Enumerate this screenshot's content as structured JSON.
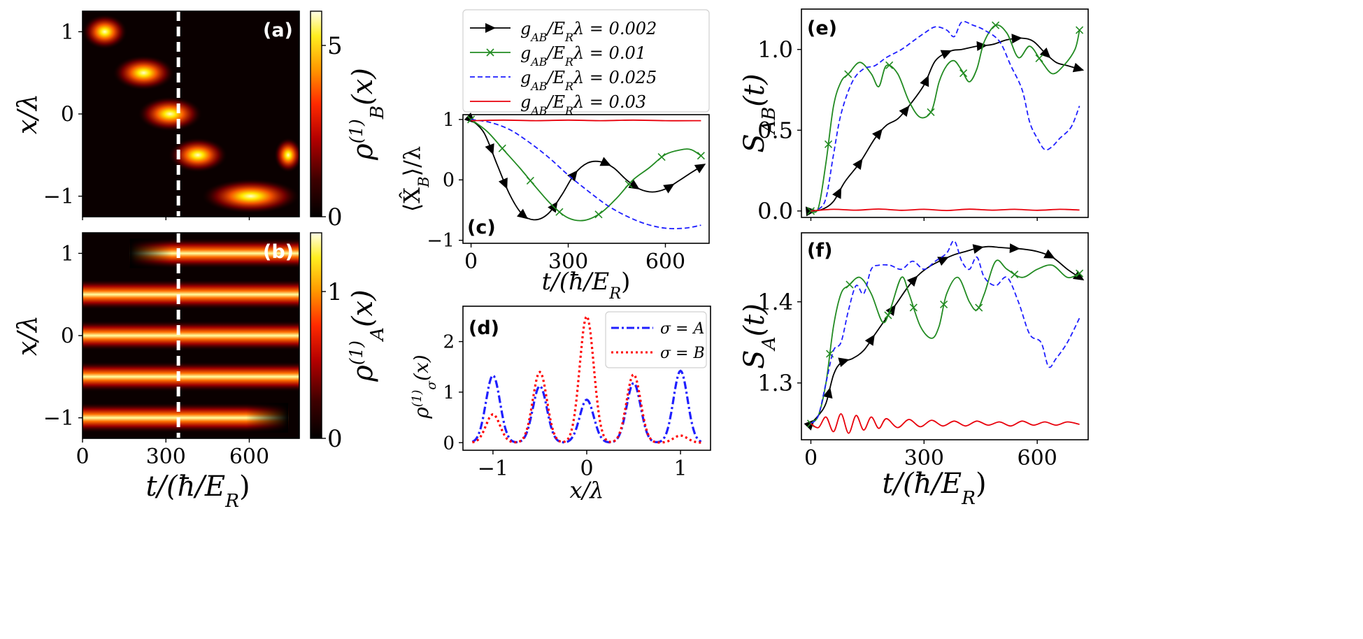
{
  "figure": {
    "panel_labels": [
      "(a)",
      "(b)",
      "(c)",
      "(d)",
      "(e)",
      "(f)"
    ]
  },
  "chart_data": [
    {
      "id": "a",
      "type": "heatmap",
      "panel_label": "(a)",
      "xlabel": "t/(ħ/E_R)",
      "ylabel": "x/λ",
      "colorbar_label": "ρ_B^(1)(x)",
      "colorbar_ticks": [
        0,
        5
      ],
      "colorbar_range": [
        0,
        6
      ],
      "xlim": [
        0,
        780
      ],
      "ylim": [
        -1.25,
        1.25
      ],
      "yticks": [
        -1,
        0,
        1
      ],
      "ytick_labels": [
        "−1",
        "0",
        "1"
      ],
      "dashed_line_t": 345,
      "blobs": [
        {
          "t_start": 0,
          "t_end": 160,
          "x": 1.0
        },
        {
          "t_start": 110,
          "t_end": 330,
          "x": 0.5
        },
        {
          "t_start": 200,
          "t_end": 430,
          "x": 0.0
        },
        {
          "t_start": 310,
          "t_end": 520,
          "x": -0.5
        },
        {
          "t_start": 690,
          "t_end": 790,
          "x": -0.5
        },
        {
          "t_start": 430,
          "t_end": 780,
          "x": -1.0
        }
      ]
    },
    {
      "id": "b",
      "type": "heatmap",
      "panel_label": "(b)",
      "xlabel": "t/(ħ/E_R)",
      "ylabel": "x/λ",
      "colorbar_label": "ρ_A^(1)(x)",
      "colorbar_ticks": [
        0,
        1
      ],
      "colorbar_range": [
        0,
        1.4
      ],
      "xlim": [
        0,
        780
      ],
      "xticks": [
        0,
        300,
        600
      ],
      "ylim": [
        -1.25,
        1.25
      ],
      "yticks": [
        -1,
        0,
        1
      ],
      "ytick_labels": [
        "−1",
        "0",
        "1"
      ],
      "dashed_line_t": 345,
      "bands": [
        {
          "x": 1.0,
          "t_start": 170,
          "t_end": 780
        },
        {
          "x": 0.5,
          "t_start": 0,
          "t_end": 780
        },
        {
          "x": 0.0,
          "t_start": 0,
          "t_end": 780
        },
        {
          "x": -0.5,
          "t_start": 0,
          "t_end": 780
        },
        {
          "x": -1.0,
          "t_start": 0,
          "t_end": 740
        }
      ]
    },
    {
      "id": "c",
      "type": "line",
      "panel_label": "(c)",
      "xlabel": "t/(ħ/E_R)",
      "ylabel": "⟨X̂_B⟩/λ",
      "xlim": [
        -25,
        735
      ],
      "ylim": [
        -1.05,
        1.08
      ],
      "xticks": [
        0,
        300,
        600
      ],
      "yticks": [
        -1,
        0,
        1
      ],
      "ytick_labels": [
        "−1",
        "0",
        "1"
      ],
      "legend": [
        {
          "label": "g_AB/E_Rλ = 0.002",
          "color": "#000000",
          "style": "solid",
          "marker": "triangle"
        },
        {
          "label": "g_AB/E_Rλ = 0.01",
          "color": "#228b22",
          "style": "solid",
          "marker": "x"
        },
        {
          "label": "g_AB/E_Rλ = 0.025",
          "color": "#1f1fff",
          "style": "dashed",
          "marker": ""
        },
        {
          "label": "g_AB/E_Rλ = 0.03",
          "color": "#e8000b",
          "style": "solid",
          "marker": ""
        }
      ],
      "series": [
        {
          "name": "g_AB/E_Rλ = 0.002",
          "color": "#000000",
          "style": "solid",
          "marker": "triangle",
          "x": [
            0,
            40,
            80,
            120,
            160,
            200,
            240,
            280,
            320,
            360,
            400,
            440,
            480,
            520,
            560,
            600,
            640,
            680,
            710
          ],
          "y": [
            1.0,
            0.78,
            0.26,
            -0.25,
            -0.58,
            -0.66,
            -0.55,
            -0.25,
            0.1,
            0.28,
            0.3,
            0.2,
            0.0,
            -0.15,
            -0.2,
            -0.15,
            -0.02,
            0.12,
            0.22
          ]
        },
        {
          "name": "g_AB/E_Rλ = 0.01",
          "color": "#228b22",
          "style": "solid",
          "marker": "x",
          "x": [
            0,
            50,
            100,
            150,
            200,
            250,
            300,
            350,
            400,
            450,
            500,
            550,
            600,
            650,
            680,
            710
          ],
          "y": [
            1.0,
            0.8,
            0.5,
            0.2,
            -0.12,
            -0.42,
            -0.63,
            -0.67,
            -0.55,
            -0.3,
            0.0,
            0.2,
            0.42,
            0.5,
            0.5,
            0.4
          ]
        },
        {
          "name": "g_AB/E_Rλ = 0.025",
          "color": "#1f1fff",
          "style": "dashed",
          "marker": "",
          "x": [
            0,
            60,
            120,
            180,
            240,
            300,
            360,
            420,
            480,
            540,
            600,
            660,
            710
          ],
          "y": [
            1.0,
            0.95,
            0.83,
            0.62,
            0.37,
            0.08,
            -0.18,
            -0.42,
            -0.6,
            -0.73,
            -0.8,
            -0.8,
            -0.75
          ]
        },
        {
          "name": "g_AB/E_Rλ = 0.03",
          "color": "#e8000b",
          "style": "solid",
          "marker": "",
          "x": [
            0,
            100,
            200,
            300,
            400,
            500,
            600,
            710
          ],
          "y": [
            0.98,
            0.99,
            0.98,
            0.99,
            0.98,
            0.99,
            0.98,
            0.98
          ]
        }
      ]
    },
    {
      "id": "d",
      "type": "line",
      "panel_label": "(d)",
      "xlabel": "x/λ",
      "ylabel": "ρ_σ^(1)(x)",
      "xlim": [
        -1.32,
        1.32
      ],
      "ylim": [
        -0.15,
        2.7
      ],
      "xticks": [
        -1,
        0,
        1
      ],
      "xtick_labels": [
        "−1",
        "0",
        "1"
      ],
      "yticks": [
        0,
        1,
        2
      ],
      "peak_width": 0.075,
      "legend": [
        {
          "label": "σ = A",
          "color": "#1f1fff",
          "style": "dashdot"
        },
        {
          "label": "σ = B",
          "color": "#ff0000",
          "style": "dotted"
        }
      ],
      "series": [
        {
          "name": "σ = A",
          "color": "#1f1fff",
          "style": "dashdot",
          "peak_positions": [
            -1,
            -0.5,
            0,
            0.5,
            1
          ],
          "peak_heights": [
            1.33,
            1.12,
            0.85,
            1.18,
            1.42
          ]
        },
        {
          "name": "σ = B",
          "color": "#ff0000",
          "style": "dotted",
          "peak_positions": [
            -1,
            -0.5,
            0,
            0.5,
            1
          ],
          "peak_heights": [
            0.56,
            1.4,
            2.5,
            1.35,
            0.14
          ]
        }
      ]
    },
    {
      "id": "e",
      "type": "line",
      "panel_label": "(e)",
      "xlabel": "",
      "ylabel": "S_AB(t)",
      "xlim": [
        -25,
        735
      ],
      "ylim": [
        -0.04,
        1.25
      ],
      "yticks": [
        0.0,
        0.5,
        1.0
      ],
      "ytick_labels": [
        "0.0",
        "0.5",
        "1.0"
      ],
      "series": [
        {
          "name": "g_AB/E_Rλ = 0.002",
          "color": "#000000",
          "style": "solid",
          "marker": "triangle",
          "x": [
            0,
            30,
            60,
            90,
            130,
            170,
            200,
            230,
            260,
            300,
            330,
            370,
            400,
            440,
            480,
            520,
            560,
            590,
            620,
            650,
            680,
            710
          ],
          "y": [
            0.0,
            0.01,
            0.06,
            0.18,
            0.3,
            0.45,
            0.53,
            0.57,
            0.65,
            0.78,
            0.93,
            0.99,
            1.0,
            1.02,
            1.03,
            1.06,
            1.07,
            1.05,
            0.98,
            0.92,
            0.9,
            0.88
          ]
        },
        {
          "name": "g_AB/E_Rλ = 0.01",
          "color": "#228b22",
          "style": "solid",
          "marker": "x",
          "x": [
            0,
            20,
            40,
            60,
            80,
            100,
            130,
            160,
            180,
            200,
            230,
            260,
            290,
            320,
            340,
            360,
            380,
            400,
            420,
            440,
            460,
            490,
            520,
            550,
            580,
            610,
            640,
            670,
            700,
            712
          ],
          "y": [
            0.0,
            0.02,
            0.3,
            0.65,
            0.8,
            0.85,
            0.92,
            0.85,
            0.77,
            0.9,
            0.85,
            0.68,
            0.58,
            0.62,
            0.8,
            0.9,
            0.93,
            0.87,
            0.8,
            0.88,
            1.05,
            1.15,
            1.1,
            0.95,
            1.02,
            0.93,
            0.85,
            0.9,
            1.0,
            1.12
          ]
        },
        {
          "name": "g_AB/E_Rλ = 0.025",
          "color": "#1f1fff",
          "style": "dashed",
          "marker": "",
          "x": [
            0,
            20,
            40,
            60,
            80,
            110,
            140,
            170,
            200,
            240,
            270,
            300,
            330,
            360,
            380,
            400,
            430,
            460,
            500,
            530,
            560,
            580,
            600,
            620,
            640,
            660,
            690,
            712
          ],
          "y": [
            0.0,
            0.01,
            0.08,
            0.35,
            0.6,
            0.8,
            0.88,
            0.9,
            0.95,
            1.0,
            1.05,
            1.1,
            1.14,
            1.12,
            1.08,
            1.17,
            1.15,
            1.12,
            1.05,
            0.9,
            0.75,
            0.55,
            0.45,
            0.38,
            0.4,
            0.45,
            0.52,
            0.65
          ]
        },
        {
          "name": "g_AB/E_Rλ = 0.03",
          "color": "#e8000b",
          "style": "solid",
          "marker": "",
          "x": [
            0,
            60,
            120,
            180,
            240,
            300,
            360,
            420,
            480,
            540,
            600,
            660,
            712
          ],
          "y": [
            0.0,
            0.01,
            0.005,
            0.012,
            0.004,
            0.01,
            0.003,
            0.011,
            0.005,
            0.01,
            0.004,
            0.01,
            0.006
          ]
        }
      ]
    },
    {
      "id": "f",
      "type": "line",
      "panel_label": "(f)",
      "xlabel": "t/(ħ/E_R)",
      "ylabel": "S_A(t)",
      "xlim": [
        -25,
        735
      ],
      "ylim": [
        1.23,
        1.485
      ],
      "xticks": [
        0,
        300,
        600
      ],
      "yticks": [
        1.3,
        1.4
      ],
      "series": [
        {
          "name": "g_AB/E_Rλ = 0.002",
          "color": "#000000",
          "style": "solid",
          "marker": "triangle",
          "x": [
            0,
            20,
            40,
            60,
            80,
            110,
            140,
            170,
            200,
            230,
            260,
            290,
            320,
            350,
            380,
            410,
            440,
            470,
            500,
            530,
            560,
            600,
            640,
            680,
            712
          ],
          "y": [
            1.25,
            1.26,
            1.275,
            1.31,
            1.325,
            1.33,
            1.34,
            1.36,
            1.38,
            1.4,
            1.42,
            1.435,
            1.445,
            1.452,
            1.458,
            1.462,
            1.466,
            1.468,
            1.467,
            1.466,
            1.465,
            1.462,
            1.455,
            1.44,
            1.43
          ]
        },
        {
          "name": "g_AB/E_Rλ = 0.01",
          "color": "#228b22",
          "style": "solid",
          "marker": "x",
          "x": [
            0,
            20,
            40,
            60,
            80,
            100,
            130,
            160,
            190,
            210,
            240,
            260,
            290,
            320,
            340,
            360,
            390,
            420,
            440,
            460,
            490,
            520,
            560,
            600,
            640,
            680,
            712
          ],
          "y": [
            1.25,
            1.26,
            1.3,
            1.37,
            1.41,
            1.42,
            1.43,
            1.41,
            1.375,
            1.39,
            1.43,
            1.41,
            1.37,
            1.355,
            1.37,
            1.41,
            1.43,
            1.4,
            1.39,
            1.41,
            1.45,
            1.44,
            1.43,
            1.44,
            1.445,
            1.43,
            1.435
          ]
        },
        {
          "name": "g_AB/E_Rλ = 0.025",
          "color": "#1f1fff",
          "style": "dashed",
          "marker": "",
          "x": [
            0,
            20,
            40,
            60,
            80,
            100,
            120,
            140,
            160,
            180,
            210,
            240,
            270,
            300,
            330,
            360,
            380,
            400,
            420,
            440,
            460,
            490,
            520,
            550,
            580,
            610,
            630,
            650,
            680,
            712
          ],
          "y": [
            1.25,
            1.26,
            1.3,
            1.34,
            1.35,
            1.39,
            1.42,
            1.41,
            1.44,
            1.445,
            1.445,
            1.44,
            1.45,
            1.44,
            1.45,
            1.46,
            1.475,
            1.45,
            1.44,
            1.455,
            1.43,
            1.42,
            1.43,
            1.4,
            1.36,
            1.35,
            1.32,
            1.33,
            1.35,
            1.38
          ]
        },
        {
          "name": "g_AB/E_Rλ = 0.03",
          "color": "#e8000b",
          "style": "solid",
          "marker": "",
          "x": [
            0,
            20,
            40,
            60,
            80,
            100,
            120,
            140,
            160,
            180,
            200,
            230,
            260,
            290,
            320,
            350,
            380,
            410,
            440,
            470,
            500,
            530,
            560,
            590,
            620,
            650,
            680,
            712
          ],
          "y": [
            1.25,
            1.245,
            1.258,
            1.24,
            1.262,
            1.238,
            1.26,
            1.242,
            1.258,
            1.244,
            1.256,
            1.245,
            1.255,
            1.246,
            1.254,
            1.247,
            1.253,
            1.247,
            1.253,
            1.248,
            1.252,
            1.247,
            1.253,
            1.248,
            1.252,
            1.248,
            1.252,
            1.249
          ]
        }
      ]
    }
  ]
}
